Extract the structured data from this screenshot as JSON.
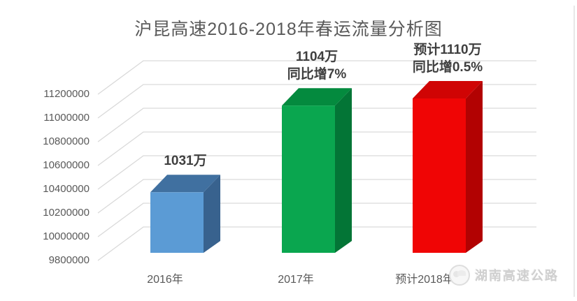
{
  "page": {
    "background": "#FFFFFF"
  },
  "header": {
    "title": "沪昆高速2016-2018年春运流量分析图"
  },
  "chart_data": {
    "type": "bar",
    "style": "3d-column",
    "title": "沪昆高速2016-2018年春运流量分析图",
    "categories": [
      "2016年",
      "2017年",
      "预计2018年"
    ],
    "values": [
      10310000,
      11040000,
      11100000
    ],
    "bar_labels": [
      {
        "lines": [
          "1031万"
        ]
      },
      {
        "lines": [
          "1104万",
          "同比增7%"
        ]
      },
      {
        "lines": [
          "预计1110万",
          "同比增0.5%"
        ]
      }
    ],
    "bar_colors": [
      {
        "front": "#5B9BD5",
        "top": "#4070A0",
        "side": "#38628E"
      },
      {
        "front": "#0AA64F",
        "top": "#048A3E",
        "side": "#037536"
      },
      {
        "front": "#F00505",
        "top": "#D00404",
        "side": "#B20202"
      }
    ],
    "yaxis": {
      "min": 9800000,
      "max": 11200000,
      "step": 200000,
      "tick_labels_top_to_bottom": [
        "11200000",
        "11000000",
        "10800000",
        "10600000",
        "10400000",
        "10200000",
        "10000000",
        "9800000"
      ]
    },
    "grid": true,
    "gridline_color": "#D9D9D9",
    "legend": "none",
    "text_colors": {
      "title": "#595959",
      "axis": "#595959",
      "data_label": "#3F3F3F"
    }
  },
  "watermark": {
    "icon": "mascot-logo-icon",
    "text": "湖南高速公路",
    "color": "#CFCFCF"
  }
}
